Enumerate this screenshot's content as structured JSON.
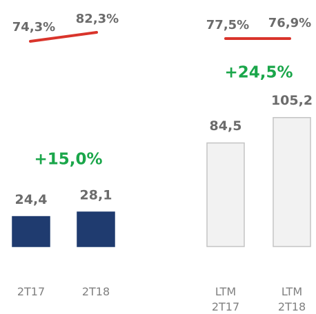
{
  "chart_data": {
    "type": "bar",
    "categories": [
      "2T17",
      "2T18",
      "LTM 2T17",
      "LTM 2T18"
    ],
    "values": [
      24.4,
      28.1,
      84.5,
      105.2
    ],
    "value_labels": [
      "24,4",
      "28,1",
      "84,5",
      "105,2"
    ],
    "colors": [
      "#1f3b6f",
      "#1f3b6f",
      "#f2f2f2",
      "#f2f2f2"
    ],
    "edgecolors": [
      "#1f3b6f",
      "#1f3b6f",
      "#c4c4c4",
      "#c4c4c4"
    ],
    "growth_labels": [
      "+15,0%",
      "+24,5%"
    ],
    "margin_labels": [
      "74,3%",
      "82,3%",
      "77,5%",
      "76,9%"
    ]
  }
}
